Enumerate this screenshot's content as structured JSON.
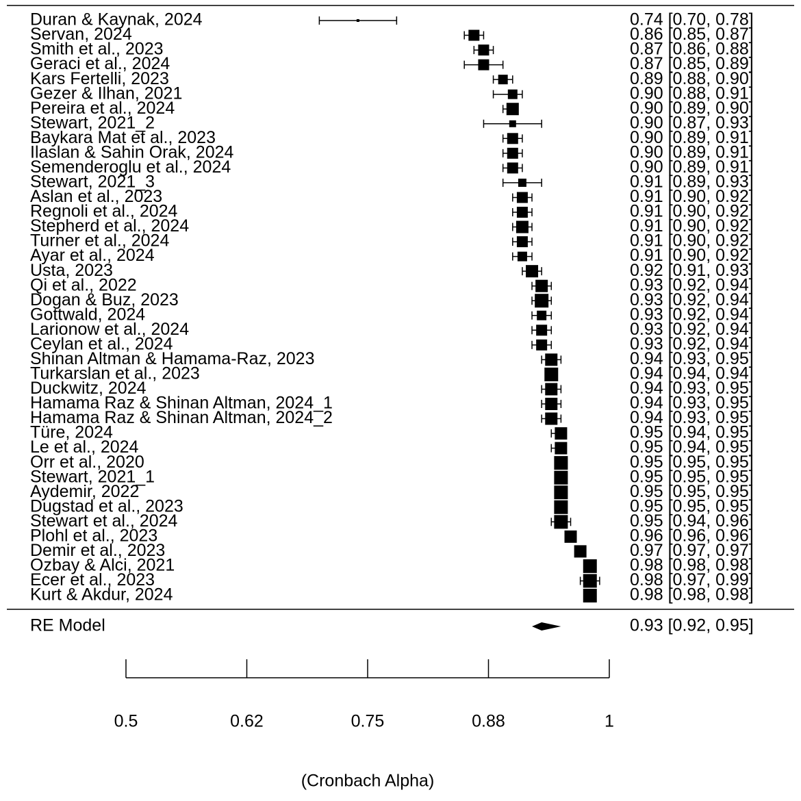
{
  "chart_data": {
    "type": "forest",
    "color": "#000000",
    "studies": [
      "Duran & Kaynak, 2024",
      "Servan, 2024",
      "Smith et al., 2023",
      "Geraci et al., 2024",
      "Kars Fertelli, 2023",
      "Gezer & Ilhan, 2021",
      "Pereira et al., 2024",
      "Stewart, 2021_2",
      "Baykara Mat et al., 2023",
      "Ilaslan & Sahin Orak, 2024",
      "Semenderoglu et al., 2024",
      "Stewart, 2021_3",
      "Aslan et al., 2023",
      "Regnoli et al., 2024",
      "Stepherd et al., 2024",
      "Turner et al., 2024",
      "Ayar et al., 2024",
      "Usta, 2023",
      "Qi et al., 2022",
      "Dogan & Buz, 2023",
      "Gottwald, 2024",
      "Larionow et al., 2024",
      "Ceylan et al., 2024",
      "Shinan Altman & Hamama-Raz, 2023",
      "Turkarslan et al., 2023",
      "Duckwitz, 2024",
      "Hamama Raz & Shinan Altman, 2024_1",
      "Hamama Raz & Shinan Altman, 2024_2",
      "Türe, 2024",
      "Le et al., 2024",
      "Orr et al., 2020",
      "Stewart, 2021_1",
      "Aydemir, 2022",
      "Dugstad et al., 2023",
      "Stewart et al., 2024",
      "Plohl et al., 2023",
      "Demir et al., 2023",
      "Ozbay & Alci, 2021",
      "Ecer et al., 2023",
      "Kurt & Akdur, 2024"
    ],
    "values": [
      0.74,
      0.86,
      0.87,
      0.87,
      0.89,
      0.9,
      0.9,
      0.9,
      0.9,
      0.9,
      0.9,
      0.91,
      0.91,
      0.91,
      0.91,
      0.91,
      0.91,
      0.92,
      0.93,
      0.93,
      0.93,
      0.93,
      0.93,
      0.94,
      0.94,
      0.94,
      0.94,
      0.94,
      0.95,
      0.95,
      0.95,
      0.95,
      0.95,
      0.95,
      0.95,
      0.96,
      0.97,
      0.98,
      0.98,
      0.98
    ],
    "lower": [
      0.7,
      0.85,
      0.86,
      0.85,
      0.88,
      0.88,
      0.89,
      0.87,
      0.89,
      0.89,
      0.89,
      0.89,
      0.9,
      0.9,
      0.9,
      0.9,
      0.9,
      0.91,
      0.92,
      0.92,
      0.92,
      0.92,
      0.92,
      0.93,
      0.94,
      0.93,
      0.93,
      0.93,
      0.94,
      0.94,
      0.95,
      0.95,
      0.95,
      0.95,
      0.94,
      0.96,
      0.97,
      0.98,
      0.97,
      0.98
    ],
    "upper": [
      0.78,
      0.87,
      0.88,
      0.89,
      0.9,
      0.91,
      0.9,
      0.93,
      0.91,
      0.91,
      0.91,
      0.93,
      0.92,
      0.92,
      0.92,
      0.92,
      0.92,
      0.93,
      0.94,
      0.94,
      0.94,
      0.94,
      0.94,
      0.95,
      0.94,
      0.95,
      0.95,
      0.95,
      0.95,
      0.95,
      0.95,
      0.95,
      0.95,
      0.95,
      0.96,
      0.96,
      0.97,
      0.98,
      0.99,
      0.98
    ],
    "value_labels": [
      "0.74 [0.70, 0.78]",
      "0.86 [0.85, 0.87]",
      "0.87 [0.86, 0.88]",
      "0.87 [0.85, 0.89]",
      "0.89 [0.88, 0.90]",
      "0.90 [0.88, 0.91]",
      "0.90 [0.89, 0.90]",
      "0.90 [0.87, 0.93]",
      "0.90 [0.89, 0.91]",
      "0.90 [0.89, 0.91]",
      "0.90 [0.89, 0.91]",
      "0.91 [0.89, 0.93]",
      "0.91 [0.90, 0.92]",
      "0.91 [0.90, 0.92]",
      "0.91 [0.90, 0.92]",
      "0.91 [0.90, 0.92]",
      "0.91 [0.90, 0.92]",
      "0.92 [0.91, 0.93]",
      "0.93 [0.92, 0.94]",
      "0.93 [0.92, 0.94]",
      "0.93 [0.92, 0.94]",
      "0.93 [0.92, 0.94]",
      "0.93 [0.92, 0.94]",
      "0.94 [0.93, 0.95]",
      "0.94 [0.94, 0.94]",
      "0.94 [0.93, 0.95]",
      "0.94 [0.93, 0.95]",
      "0.94 [0.93, 0.95]",
      "0.95 [0.94, 0.95]",
      "0.95 [0.94, 0.95]",
      "0.95 [0.95, 0.95]",
      "0.95 [0.95, 0.95]",
      "0.95 [0.95, 0.95]",
      "0.95 [0.95, 0.95]",
      "0.95 [0.94, 0.96]",
      "0.96 [0.96, 0.96]",
      "0.97 [0.97, 0.97]",
      "0.98 [0.98, 0.98]",
      "0.98 [0.97, 0.99]",
      "0.98 [0.98, 0.98]"
    ],
    "weights": [
      4,
      16,
      16,
      16,
      14,
      14,
      18,
      10,
      16,
      16,
      16,
      12,
      16,
      16,
      18,
      16,
      14,
      18,
      18,
      20,
      14,
      16,
      16,
      18,
      20,
      18,
      18,
      18,
      18,
      18,
      20,
      20,
      20,
      20,
      20,
      18,
      18,
      20,
      20,
      20
    ],
    "summary": {
      "label": "RE Model",
      "value": 0.93,
      "lower": 0.92,
      "upper": 0.95,
      "value_label": "0.93 [0.92, 0.95]"
    },
    "xlim": [
      0.5,
      1
    ],
    "xticks": [
      0.5,
      {
        "value": 0.625,
        "label": "0.62"
      },
      0.75,
      {
        "value": 0.875,
        "label": "0.88"
      },
      1
    ],
    "xlabel": "(Cronbach Alpha)"
  }
}
